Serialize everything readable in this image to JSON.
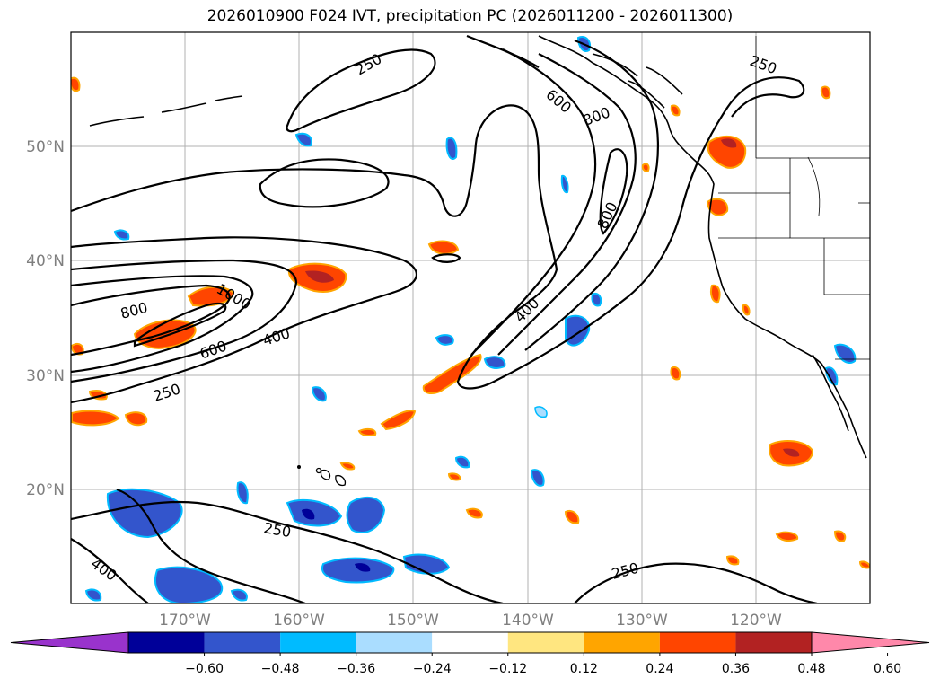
{
  "title": "2026010900 F024 IVT, precipitation PC (2026011200 - 2026011300)",
  "lat_ticks": [
    "50°N",
    "40°N",
    "30°N",
    "20°N"
  ],
  "lon_ticks": [
    "170°W",
    "160°W",
    "150°W",
    "140°W",
    "130°W",
    "120°W"
  ],
  "contour_labels": [
    "250",
    "600",
    "800",
    "800",
    "1000",
    "800",
    "600",
    "400",
    "250",
    "400",
    "250",
    "400",
    "250",
    "250"
  ],
  "colorbar": {
    "labels": [
      "−0.60",
      "−0.48",
      "−0.36",
      "−0.24",
      "−0.12",
      "0.12",
      "0.24",
      "0.36",
      "0.48",
      "0.60"
    ],
    "colors": [
      "#9933cc",
      "#000099",
      "#3355cc",
      "#00bbff",
      "#aaddff",
      "#ffffff",
      "#ffe680",
      "#ffa500",
      "#ff4500",
      "#b22222",
      "#ff88aa"
    ]
  },
  "colors": {
    "neg_strong": "#000099",
    "neg_mid": "#3355cc",
    "neg_light": "#00bbff",
    "neg_faint": "#aaddff",
    "pos_faint": "#ffe680",
    "pos_light": "#ffa500",
    "pos_mid": "#ff4500",
    "pos_strong": "#b22222"
  }
}
